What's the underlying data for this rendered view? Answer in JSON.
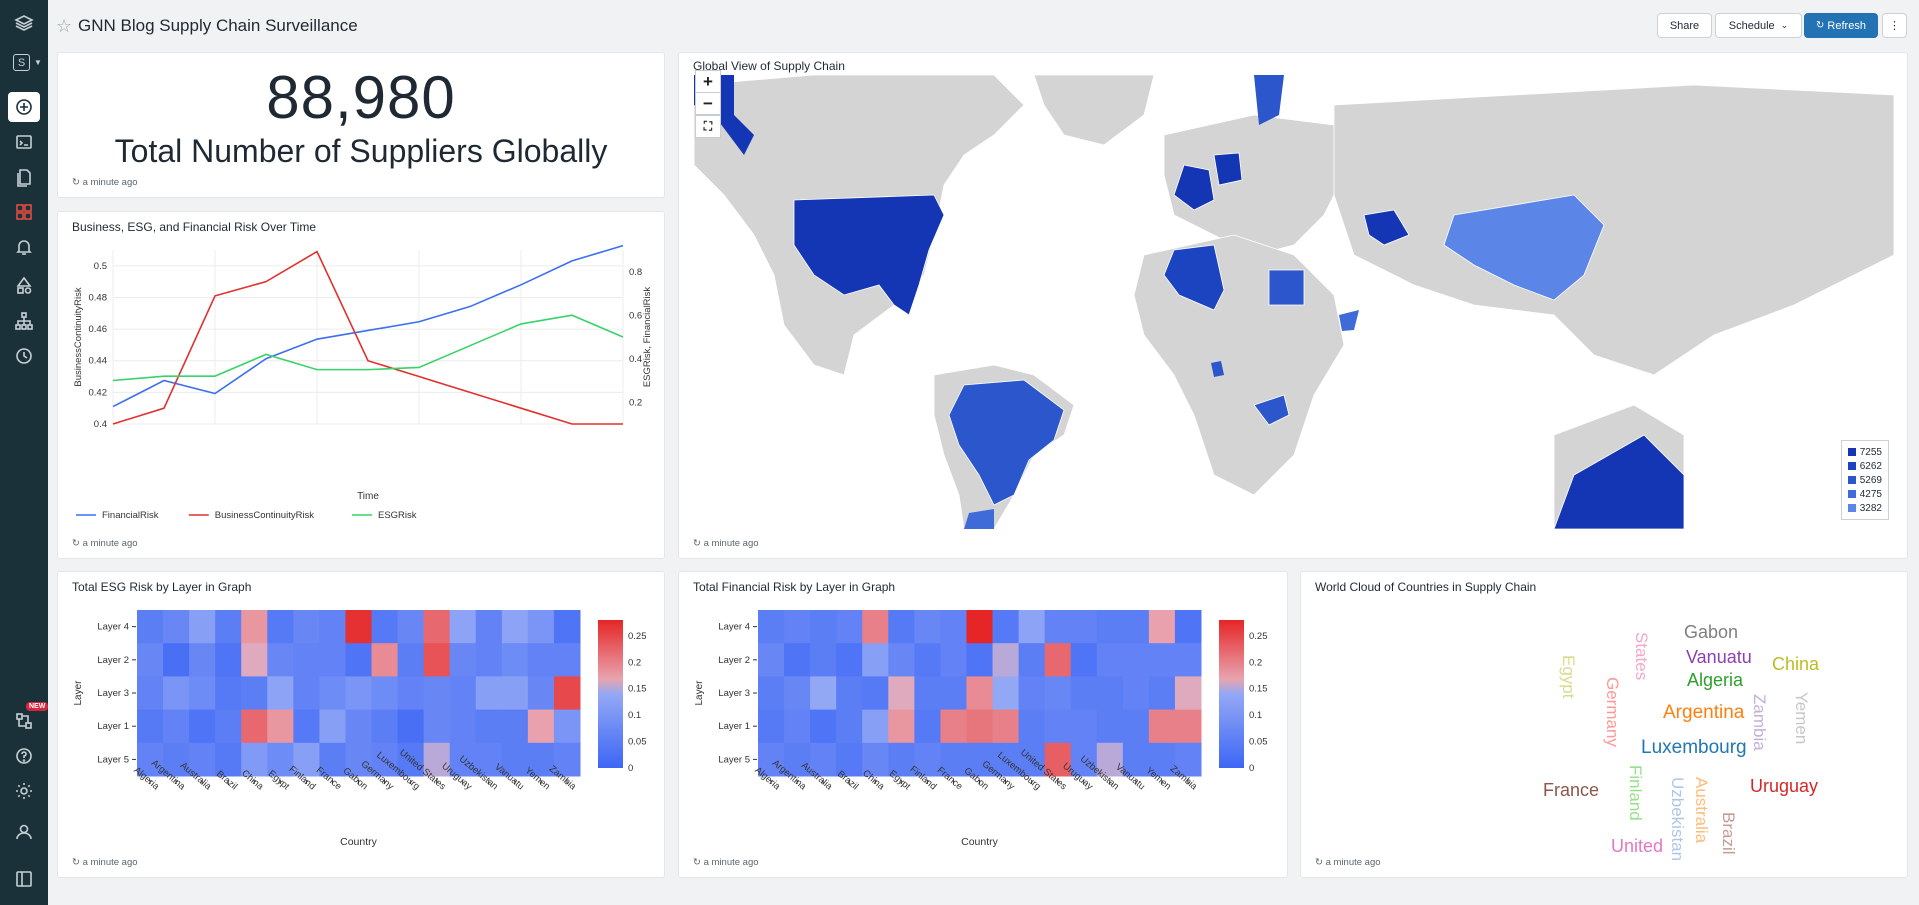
{
  "dashboard": {
    "title": "GNN Blog Supply Chain Surveillance",
    "share_label": "Share",
    "schedule_label": "Schedule",
    "refresh_label": "Refresh",
    "workspace_letter": "S",
    "new_badge": "NEW"
  },
  "counter_panel": {
    "value": "88,980",
    "label": "Total Number of Suppliers Globally",
    "updated": "a minute ago"
  },
  "line_panel": {
    "title": "Business, ESG, and Financial Risk Over Time",
    "updated": "a minute ago"
  },
  "map_panel": {
    "title": "Global View of Supply Chain",
    "updated": "a minute ago",
    "zoom_in": "+",
    "zoom_out": "−",
    "legend": [
      {
        "label": "7255",
        "color": "#1436b5"
      },
      {
        "label": "6262",
        "color": "#1c44c0"
      },
      {
        "label": "5269",
        "color": "#2c57cc"
      },
      {
        "label": "4275",
        "color": "#3f6bd8"
      },
      {
        "label": "3282",
        "color": "#5b86e8"
      }
    ]
  },
  "esg_panel": {
    "title": "Total ESG Risk by Layer in Graph",
    "updated": "a minute ago"
  },
  "fin_panel": {
    "title": "Total Financial Risk by Layer in Graph",
    "updated": "a minute ago"
  },
  "cloud_panel": {
    "title": "World Cloud of Countries in Supply Chain",
    "updated": "a minute ago",
    "words": [
      {
        "text": "Gabon",
        "color": "#7f7f7f"
      },
      {
        "text": "States",
        "color": "#f2a7c8"
      },
      {
        "text": "Vanuatu",
        "color": "#8c3fb3"
      },
      {
        "text": "China",
        "color": "#bcbd22"
      },
      {
        "text": "Egypt",
        "color": "#dbdb8d"
      },
      {
        "text": "Germany",
        "color": "#ff9896"
      },
      {
        "text": "Algeria",
        "color": "#2ca02c"
      },
      {
        "text": "Argentina",
        "color": "#ff7f0e"
      },
      {
        "text": "Zambia",
        "color": "#c5b0d5"
      },
      {
        "text": "Yemen",
        "color": "#c7c7c7"
      },
      {
        "text": "Luxembourg",
        "color": "#1f77b4"
      },
      {
        "text": "France",
        "color": "#8c564b"
      },
      {
        "text": "Finland",
        "color": "#98df8a"
      },
      {
        "text": "Uzbekistan",
        "color": "#aec7e8"
      },
      {
        "text": "Australia",
        "color": "#ffbb78"
      },
      {
        "text": "Uruguay",
        "color": "#d62728"
      },
      {
        "text": "Brazil",
        "color": "#c49c94"
      },
      {
        "text": "United",
        "color": "#e377c2"
      }
    ]
  },
  "chart_data": [
    {
      "type": "line",
      "title": "Business, ESG, and Financial Risk Over Time",
      "xlabel": "Time",
      "ylabel": "BusinessContinuityRisk",
      "y2label": "ESGRisk, FinancialRisk",
      "ylim": [
        0.4,
        0.51
      ],
      "y2lim": [
        0.1,
        0.9
      ],
      "yticks": [
        "0.4",
        "0.42",
        "0.44",
        "0.46",
        "0.48",
        "0.5"
      ],
      "y2ticks": [
        "0.2",
        "0.4",
        "0.6",
        "0.8"
      ],
      "x": [
        0,
        1,
        2,
        3,
        4,
        5,
        6,
        7,
        8,
        9,
        10
      ],
      "series": [
        {
          "name": "FinancialRisk",
          "color": "#3b6ff0",
          "axis": "y2",
          "values": [
            0.18,
            0.3,
            0.24,
            0.4,
            0.49,
            0.53,
            0.57,
            0.64,
            0.74,
            0.85,
            0.92
          ]
        },
        {
          "name": "BusinessContinuityRisk",
          "color": "#e0312d",
          "axis": "y",
          "values": [
            0.4,
            0.41,
            0.481,
            0.49,
            0.509,
            0.44,
            0.43,
            0.42,
            0.41,
            0.4,
            0.4
          ]
        },
        {
          "name": "ESGRisk",
          "color": "#3ad26a",
          "axis": "y2",
          "values": [
            0.3,
            0.32,
            0.32,
            0.42,
            0.35,
            0.35,
            0.36,
            0.46,
            0.56,
            0.6,
            0.5
          ]
        }
      ],
      "legend": "bottom-left"
    },
    {
      "type": "heatmap",
      "title": "Total ESG Risk by Layer in Graph",
      "xlabel": "Country",
      "ylabel": "Layer",
      "x": [
        "Algeria",
        "Argentina",
        "Australia",
        "Brazil",
        "China",
        "Egypt",
        "Finland",
        "France",
        "Gabon",
        "Germany",
        "Luxembourg",
        "United States",
        "Uruguay",
        "Uzbekistan",
        "Vanuatu",
        "Yemen",
        "Zambia"
      ],
      "y": [
        "Layer 4",
        "Layer 2",
        "Layer 3",
        "Layer 1",
        "Layer 5"
      ],
      "colorbar_ticks": [
        "0.25",
        "0.2",
        "0.15",
        "0.1",
        "0.05",
        "0"
      ],
      "zlim": [
        0,
        0.28
      ],
      "values": [
        [
          0.05,
          0.07,
          0.12,
          0.05,
          0.18,
          0.04,
          0.07,
          0.06,
          0.27,
          0.04,
          0.07,
          0.22,
          0.13,
          0.06,
          0.13,
          0.1,
          0.03
        ],
        [
          0.07,
          0.02,
          0.07,
          0.03,
          0.16,
          0.07,
          0.06,
          0.06,
          0.03,
          0.19,
          0.05,
          0.24,
          0.07,
          0.06,
          0.08,
          0.06,
          0.06
        ],
        [
          0.06,
          0.1,
          0.08,
          0.04,
          0.05,
          0.13,
          0.06,
          0.08,
          0.1,
          0.08,
          0.06,
          0.07,
          0.06,
          0.12,
          0.12,
          0.07,
          0.25
        ],
        [
          0.04,
          0.06,
          0.03,
          0.05,
          0.22,
          0.18,
          0.04,
          0.12,
          0.07,
          0.05,
          0.02,
          0.07,
          0.06,
          0.05,
          0.05,
          0.17,
          0.1
        ],
        [
          0.06,
          0.05,
          0.06,
          0.04,
          0.11,
          0.08,
          0.12,
          0.05,
          0.07,
          0.06,
          0.04,
          0.15,
          0.06,
          0.06,
          0.05,
          0.05,
          0.06
        ]
      ]
    },
    {
      "type": "heatmap",
      "title": "Total Financial Risk by Layer in Graph",
      "xlabel": "Country",
      "ylabel": "Layer",
      "x": [
        "Algeria",
        "Argentina",
        "Australia",
        "Brazil",
        "China",
        "Egypt",
        "Finland",
        "France",
        "Gabon",
        "Germany",
        "Luxembourg",
        "United States",
        "Uruguay",
        "Uzbekistan",
        "Vanuatu",
        "Yemen",
        "Zambia"
      ],
      "y": [
        "Layer 4",
        "Layer 2",
        "Layer 3",
        "Layer 1",
        "Layer 5"
      ],
      "colorbar_ticks": [
        "0.25",
        "0.2",
        "0.15",
        "0.1",
        "0.05",
        "0"
      ],
      "zlim": [
        0,
        0.28
      ],
      "values": [
        [
          0.05,
          0.06,
          0.05,
          0.06,
          0.2,
          0.04,
          0.07,
          0.06,
          0.28,
          0.04,
          0.13,
          0.06,
          0.06,
          0.05,
          0.05,
          0.17,
          0.03
        ],
        [
          0.07,
          0.03,
          0.05,
          0.03,
          0.12,
          0.07,
          0.04,
          0.06,
          0.03,
          0.15,
          0.05,
          0.22,
          0.03,
          0.06,
          0.06,
          0.06,
          0.06
        ],
        [
          0.05,
          0.07,
          0.14,
          0.05,
          0.04,
          0.16,
          0.05,
          0.05,
          0.19,
          0.14,
          0.06,
          0.07,
          0.05,
          0.05,
          0.06,
          0.05,
          0.16
        ],
        [
          0.04,
          0.06,
          0.03,
          0.05,
          0.12,
          0.18,
          0.04,
          0.2,
          0.21,
          0.2,
          0.05,
          0.06,
          0.06,
          0.05,
          0.05,
          0.2,
          0.2
        ],
        [
          0.06,
          0.05,
          0.06,
          0.04,
          0.07,
          0.05,
          0.06,
          0.05,
          0.05,
          0.05,
          0.05,
          0.23,
          0.06,
          0.15,
          0.05,
          0.05,
          0.06
        ]
      ]
    }
  ]
}
